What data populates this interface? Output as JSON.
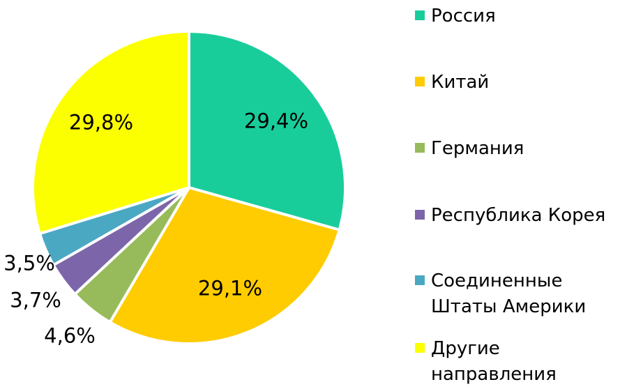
{
  "chart_data": {
    "type": "pie",
    "title": "",
    "legend_position": "right",
    "direction": "clockwise",
    "start_angle_deg": 0,
    "label_format": "percent, comma decimal separator",
    "background_color": "#FFFFFF",
    "separator_color": "#FFFFFF",
    "text_color": "#000000",
    "slices": [
      {
        "label": "Россия",
        "value": 29.4,
        "display": "29,4%",
        "color": "#19CD9B"
      },
      {
        "label": "Китай",
        "value": 29.1,
        "display": "29,1%",
        "color": "#FECC00"
      },
      {
        "label": "Германия",
        "value": 4.6,
        "display": "4,6%",
        "color": "#97BB5B"
      },
      {
        "label": "Республика Корея",
        "value": 3.7,
        "display": "3,7%",
        "color": "#7C66A9"
      },
      {
        "label": "Соединенные Штаты Америки",
        "value": 3.5,
        "display": "3,5%",
        "color": "#4BA8C3"
      },
      {
        "label": "Другие направления",
        "value": 29.8,
        "display": "29,8%",
        "color": "#FCFF00"
      }
    ]
  }
}
